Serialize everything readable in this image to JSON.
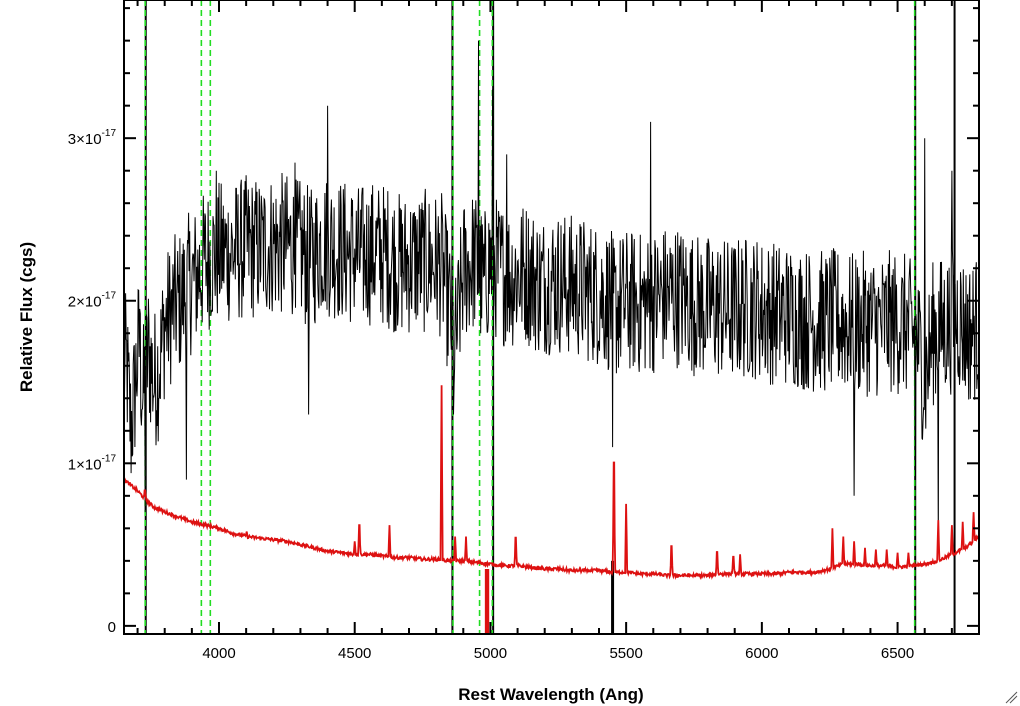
{
  "chart_data": {
    "type": "line",
    "title": "",
    "xlabel": "Rest Wavelength (Ang)",
    "ylabel": "Relative Flux (cgs)",
    "xlim": [
      3650,
      6800
    ],
    "ylim": [
      -0.05,
      3.85
    ],
    "y_unit_exponent": -17,
    "x_ticks": [
      4000,
      4500,
      5000,
      5500,
      6000,
      6500
    ],
    "y_ticks": [
      {
        "value": 0,
        "mantissa": "0",
        "exponent": ""
      },
      {
        "value": 1,
        "mantissa": "1×10",
        "exponent": "-17"
      },
      {
        "value": 2,
        "mantissa": "2×10",
        "exponent": "-17"
      },
      {
        "value": 3,
        "mantissa": "3×10",
        "exponent": "-17"
      }
    ],
    "grid": false,
    "colors": {
      "observed": "#000000",
      "model": "#dd1111",
      "line_markers": "#22dd22",
      "sky_lines": "#000000"
    },
    "series": [
      {
        "color": "#000000",
        "x": [
          3660,
          3675,
          3690,
          3705,
          3720,
          3740,
          3760,
          3780,
          3800,
          3830,
          3860,
          3890,
          3920,
          3950,
          3980,
          4020,
          4060,
          4100,
          4150,
          4200,
          4250,
          4300,
          4340,
          4380,
          4420,
          4470,
          4520,
          4570,
          4620,
          4670,
          4720,
          4770,
          4820,
          4855,
          4870,
          4900,
          4940,
          4975,
          5000,
          5030,
          5080,
          5130,
          5180,
          5230,
          5280,
          5330,
          5380,
          5430,
          5460,
          5500,
          5540,
          5580,
          5630,
          5680,
          5730,
          5780,
          5830,
          5880,
          5930,
          5980,
          6030,
          6080,
          6130,
          6180,
          6230,
          6280,
          6330,
          6380,
          6430,
          6480,
          6530,
          6575,
          6600,
          6630,
          6680,
          6720,
          6760,
          6800
        ],
        "y": [
          1.6,
          1.2,
          1.45,
          1.75,
          1.4,
          1.7,
          1.5,
          1.6,
          1.85,
          1.95,
          2.0,
          2.1,
          2.15,
          2.25,
          2.28,
          2.3,
          2.3,
          2.33,
          2.32,
          2.35,
          2.34,
          2.3,
          2.25,
          2.36,
          2.33,
          2.3,
          2.27,
          2.3,
          2.28,
          2.22,
          2.24,
          2.24,
          2.22,
          1.9,
          1.7,
          2.18,
          2.25,
          2.1,
          2.25,
          2.18,
          2.15,
          2.18,
          2.1,
          2.12,
          2.1,
          2.08,
          2.05,
          2.02,
          1.95,
          2.0,
          1.98,
          1.98,
          2.02,
          2.04,
          2.0,
          1.96,
          1.96,
          1.94,
          1.96,
          1.96,
          1.93,
          1.92,
          1.9,
          1.88,
          1.87,
          1.88,
          1.85,
          1.86,
          1.85,
          1.87,
          1.85,
          1.75,
          1.5,
          1.8,
          1.85,
          1.9,
          1.8,
          1.85
        ]
      },
      {
        "color": "#dd1111",
        "x": [
          3650,
          3700,
          3740,
          3760,
          3800,
          3850,
          3900,
          3950,
          4000,
          4050,
          4100,
          4150,
          4200,
          4250,
          4300,
          4350,
          4400,
          4450,
          4500,
          4550,
          4600,
          4650,
          4700,
          4750,
          4800,
          4850,
          4900,
          4950,
          5000,
          5050,
          5100,
          5150,
          5200,
          5250,
          5300,
          5350,
          5400,
          5450,
          5500,
          5550,
          5600,
          5650,
          5700,
          5750,
          5800,
          5850,
          5900,
          5950,
          6000,
          6050,
          6100,
          6150,
          6200,
          6250,
          6300,
          6350,
          6400,
          6450,
          6500,
          6550,
          6600,
          6650,
          6700,
          6750,
          6800
        ],
        "y": [
          0.9,
          0.83,
          0.76,
          0.73,
          0.7,
          0.67,
          0.64,
          0.62,
          0.6,
          0.57,
          0.55,
          0.54,
          0.53,
          0.52,
          0.5,
          0.48,
          0.46,
          0.45,
          0.44,
          0.44,
          0.43,
          0.42,
          0.42,
          0.41,
          0.41,
          0.4,
          0.4,
          0.39,
          0.38,
          0.37,
          0.37,
          0.36,
          0.35,
          0.35,
          0.34,
          0.34,
          0.34,
          0.33,
          0.33,
          0.32,
          0.32,
          0.31,
          0.31,
          0.31,
          0.31,
          0.32,
          0.32,
          0.32,
          0.32,
          0.32,
          0.33,
          0.33,
          0.33,
          0.35,
          0.38,
          0.38,
          0.37,
          0.37,
          0.36,
          0.37,
          0.38,
          0.4,
          0.44,
          0.48,
          0.55
        ]
      }
    ],
    "model_emission_lines": [
      {
        "x": 3727,
        "peak": 0.85
      },
      {
        "x": 4102,
        "peak": 0.58
      },
      {
        "x": 4500,
        "peak": 0.52
      },
      {
        "x": 4517,
        "peak": 0.68
      },
      {
        "x": 4628,
        "peak": 0.62
      },
      {
        "x": 4820,
        "peak": 1.48
      },
      {
        "x": 4870,
        "peak": 0.55
      },
      {
        "x": 4910,
        "peak": 0.55
      },
      {
        "x": 5093,
        "peak": 0.6
      },
      {
        "x": 5455,
        "peak": 1.23
      },
      {
        "x": 5500,
        "peak": 0.75
      },
      {
        "x": 5667,
        "peak": 0.55
      },
      {
        "x": 5835,
        "peak": 0.5
      },
      {
        "x": 5895,
        "peak": 0.46
      },
      {
        "x": 5920,
        "peak": 0.44
      },
      {
        "x": 6260,
        "peak": 0.6
      },
      {
        "x": 6300,
        "peak": 0.55
      },
      {
        "x": 6340,
        "peak": 0.52
      },
      {
        "x": 6380,
        "peak": 0.48
      },
      {
        "x": 6420,
        "peak": 0.47
      },
      {
        "x": 6460,
        "peak": 0.47
      },
      {
        "x": 6500,
        "peak": 0.45
      },
      {
        "x": 6540,
        "peak": 0.45
      },
      {
        "x": 6650,
        "peak": 0.65
      },
      {
        "x": 6700,
        "peak": 0.62
      },
      {
        "x": 6740,
        "peak": 0.64
      },
      {
        "x": 6780,
        "peak": 0.7
      }
    ],
    "observed_spikes": [
      {
        "x": 3707,
        "y": 1.95
      },
      {
        "x": 3728,
        "y": 0.7
      },
      {
        "x": 3880,
        "y": 0.9
      },
      {
        "x": 3990,
        "y": 2.8
      },
      {
        "x": 4280,
        "y": 2.85
      },
      {
        "x": 4330,
        "y": 1.3
      },
      {
        "x": 4400,
        "y": 3.2
      },
      {
        "x": 4863,
        "y": 1.3
      },
      {
        "x": 4955,
        "y": 3.6
      },
      {
        "x": 5007,
        "y": 3.3
      },
      {
        "x": 5060,
        "y": 2.9
      },
      {
        "x": 5450,
        "y": 1.1
      },
      {
        "x": 5590,
        "y": 3.1
      },
      {
        "x": 6340,
        "y": 0.8
      },
      {
        "x": 6565,
        "y": 0.9
      },
      {
        "x": 6600,
        "y": 3.0
      },
      {
        "x": 6650,
        "y": 0.5
      },
      {
        "x": 6700,
        "y": 2.8
      }
    ],
    "black_spans": [
      {
        "x": 5450,
        "y_from": -0.05,
        "y_to": 0.4
      }
    ],
    "red_spans": [
      {
        "x": 4985,
        "y_from": -0.05,
        "y_to": 0.35
      },
      {
        "x": 4990,
        "y_from": -0.05,
        "y_to": 0.35
      }
    ],
    "vertical_lines": [
      {
        "x": 3730,
        "style": "solid",
        "color": "#000000"
      },
      {
        "x": 3728,
        "style": "dashed",
        "color": "#22dd22"
      },
      {
        "x": 3935,
        "style": "dashed",
        "color": "#22dd22"
      },
      {
        "x": 3968,
        "style": "dashed",
        "color": "#22dd22"
      },
      {
        "x": 4860,
        "style": "solid",
        "color": "#000000"
      },
      {
        "x": 4862,
        "style": "dashed",
        "color": "#22dd22"
      },
      {
        "x": 4960,
        "style": "dashed",
        "color": "#22dd22"
      },
      {
        "x": 5010,
        "style": "solid",
        "color": "#000000"
      },
      {
        "x": 5007,
        "style": "dashed",
        "color": "#22dd22"
      },
      {
        "x": 6565,
        "style": "solid",
        "color": "#000000"
      },
      {
        "x": 6563,
        "style": "dashed",
        "color": "#22dd22"
      },
      {
        "x": 6710,
        "style": "solid",
        "color": "#000000"
      }
    ]
  }
}
